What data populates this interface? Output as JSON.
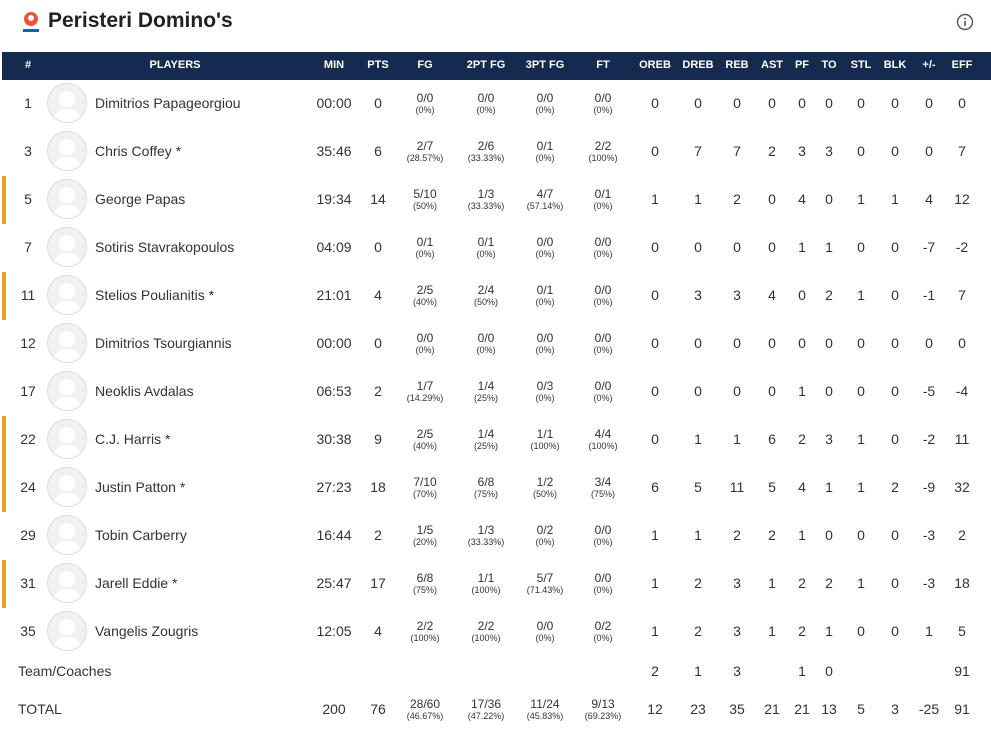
{
  "header": {
    "title": "Peristeri Domino's"
  },
  "table": {
    "columns": [
      "#",
      "PLAYERS",
      "MIN",
      "PTS",
      "FG",
      "2PT FG",
      "3PT FG",
      "FT",
      "OREB",
      "DREB",
      "REB",
      "AST",
      "PF",
      "TO",
      "STL",
      "BLK",
      "+/-",
      "EFF"
    ],
    "rows": [
      {
        "number": 1,
        "name": "Dimitrios Papageorgiou",
        "highlighted": false,
        "min": "00:00",
        "pts": 0,
        "fg": [
          "0/0",
          "(0%)"
        ],
        "fg2": [
          "0/0",
          "(0%)"
        ],
        "fg3": [
          "0/0",
          "(0%)"
        ],
        "ft": [
          "0/0",
          "(0%)"
        ],
        "stats": [
          0,
          0,
          0,
          0,
          0,
          0,
          0,
          0,
          0,
          0
        ]
      },
      {
        "number": 3,
        "name": "Chris Coffey *",
        "highlighted": false,
        "min": "35:46",
        "pts": 6,
        "fg": [
          "2/7",
          "(28.57%)"
        ],
        "fg2": [
          "2/6",
          "(33.33%)"
        ],
        "fg3": [
          "0/1",
          "(0%)"
        ],
        "ft": [
          "2/2",
          "(100%)"
        ],
        "stats": [
          0,
          7,
          7,
          2,
          3,
          3,
          0,
          0,
          0,
          7
        ]
      },
      {
        "number": 5,
        "name": "George Papas",
        "highlighted": true,
        "min": "19:34",
        "pts": 14,
        "fg": [
          "5/10",
          "(50%)"
        ],
        "fg2": [
          "1/3",
          "(33.33%)"
        ],
        "fg3": [
          "4/7",
          "(57.14%)"
        ],
        "ft": [
          "0/1",
          "(0%)"
        ],
        "stats": [
          1,
          1,
          2,
          0,
          4,
          0,
          1,
          1,
          4,
          12
        ]
      },
      {
        "number": 7,
        "name": "Sotiris Stavrakopoulos",
        "highlighted": false,
        "min": "04:09",
        "pts": 0,
        "fg": [
          "0/1",
          "(0%)"
        ],
        "fg2": [
          "0/1",
          "(0%)"
        ],
        "fg3": [
          "0/0",
          "(0%)"
        ],
        "ft": [
          "0/0",
          "(0%)"
        ],
        "stats": [
          0,
          0,
          0,
          0,
          1,
          1,
          0,
          0,
          -7,
          -2
        ]
      },
      {
        "number": 11,
        "name": "Stelios Poulianitis *",
        "highlighted": true,
        "min": "21:01",
        "pts": 4,
        "fg": [
          "2/5",
          "(40%)"
        ],
        "fg2": [
          "2/4",
          "(50%)"
        ],
        "fg3": [
          "0/1",
          "(0%)"
        ],
        "ft": [
          "0/0",
          "(0%)"
        ],
        "stats": [
          0,
          3,
          3,
          4,
          0,
          2,
          1,
          0,
          -1,
          7
        ]
      },
      {
        "number": 12,
        "name": "Dimitrios Tsourgiannis",
        "highlighted": false,
        "min": "00:00",
        "pts": 0,
        "fg": [
          "0/0",
          "(0%)"
        ],
        "fg2": [
          "0/0",
          "(0%)"
        ],
        "fg3": [
          "0/0",
          "(0%)"
        ],
        "ft": [
          "0/0",
          "(0%)"
        ],
        "stats": [
          0,
          0,
          0,
          0,
          0,
          0,
          0,
          0,
          0,
          0
        ]
      },
      {
        "number": 17,
        "name": "Neoklis Avdalas",
        "highlighted": false,
        "min": "06:53",
        "pts": 2,
        "fg": [
          "1/7",
          "(14.29%)"
        ],
        "fg2": [
          "1/4",
          "(25%)"
        ],
        "fg3": [
          "0/3",
          "(0%)"
        ],
        "ft": [
          "0/0",
          "(0%)"
        ],
        "stats": [
          0,
          0,
          0,
          0,
          1,
          0,
          0,
          0,
          -5,
          -4
        ]
      },
      {
        "number": 22,
        "name": "C.J. Harris *",
        "highlighted": true,
        "min": "30:38",
        "pts": 9,
        "fg": [
          "2/5",
          "(40%)"
        ],
        "fg2": [
          "1/4",
          "(25%)"
        ],
        "fg3": [
          "1/1",
          "(100%)"
        ],
        "ft": [
          "4/4",
          "(100%)"
        ],
        "stats": [
          0,
          1,
          1,
          6,
          2,
          3,
          1,
          0,
          -2,
          11
        ]
      },
      {
        "number": 24,
        "name": "Justin Patton *",
        "highlighted": true,
        "min": "27:23",
        "pts": 18,
        "fg": [
          "7/10",
          "(70%)"
        ],
        "fg2": [
          "6/8",
          "(75%)"
        ],
        "fg3": [
          "1/2",
          "(50%)"
        ],
        "ft": [
          "3/4",
          "(75%)"
        ],
        "stats": [
          6,
          5,
          11,
          5,
          4,
          1,
          1,
          2,
          -9,
          32
        ]
      },
      {
        "number": 29,
        "name": "Tobin Carberry",
        "highlighted": false,
        "min": "16:44",
        "pts": 2,
        "fg": [
          "1/5",
          "(20%)"
        ],
        "fg2": [
          "1/3",
          "(33.33%)"
        ],
        "fg3": [
          "0/2",
          "(0%)"
        ],
        "ft": [
          "0/0",
          "(0%)"
        ],
        "stats": [
          1,
          1,
          2,
          2,
          1,
          0,
          0,
          0,
          -3,
          2
        ]
      },
      {
        "number": 31,
        "name": "Jarell Eddie *",
        "highlighted": true,
        "min": "25:47",
        "pts": 17,
        "fg": [
          "6/8",
          "(75%)"
        ],
        "fg2": [
          "1/1",
          "(100%)"
        ],
        "fg3": [
          "5/7",
          "(71.43%)"
        ],
        "ft": [
          "0/0",
          "(0%)"
        ],
        "stats": [
          1,
          2,
          3,
          1,
          2,
          2,
          1,
          0,
          -3,
          18
        ]
      },
      {
        "number": 35,
        "name": "Vangelis Zougris",
        "highlighted": false,
        "min": "12:05",
        "pts": 4,
        "fg": [
          "2/2",
          "(100%)"
        ],
        "fg2": [
          "2/2",
          "(100%)"
        ],
        "fg3": [
          "0/0",
          "(0%)"
        ],
        "ft": [
          "0/2",
          "(0%)"
        ],
        "stats": [
          1,
          2,
          3,
          1,
          2,
          1,
          0,
          0,
          1,
          5
        ]
      }
    ],
    "team": {
      "label": "Team/Coaches",
      "stats": [
        2,
        1,
        3,
        null,
        1,
        0,
        null,
        null,
        null,
        91
      ]
    },
    "total": {
      "label": "TOTAL",
      "min": 200,
      "pts": 76,
      "fg": [
        "28/60",
        "(46.67%)"
      ],
      "fg2": [
        "17/36",
        "(47.22%)"
      ],
      "fg3": [
        "11/24",
        "(45.83%)"
      ],
      "ft": [
        "9/13",
        "(69.23%)"
      ],
      "stats": [
        12,
        23,
        35,
        21,
        21,
        13,
        5,
        3,
        -25,
        91
      ]
    }
  }
}
